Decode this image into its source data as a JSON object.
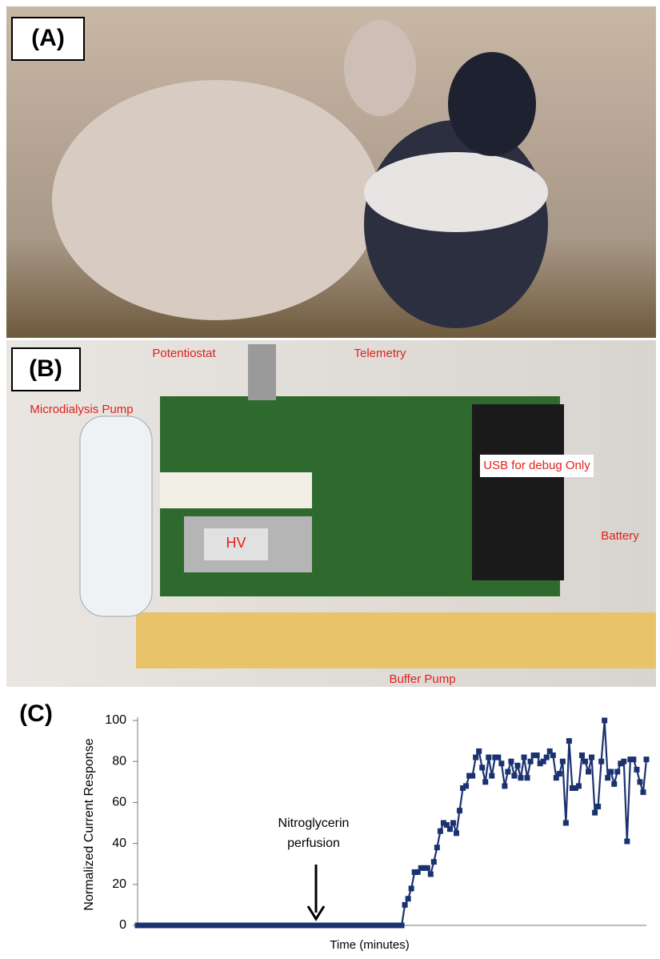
{
  "panels": {
    "a": {
      "label": "(A)"
    },
    "b": {
      "label": "(B)",
      "annotations": [
        "Potentiostat",
        "Telemetry",
        "Microdialysis Pump",
        "USB for debug Only",
        "HV",
        "Battery",
        "Buffer Pump"
      ]
    },
    "c": {
      "label": "(C)"
    }
  },
  "chart_data": {
    "type": "line",
    "ylabel": "Normalized Current Response",
    "xlabel": "Time (minutes)",
    "annotation": [
      "Nitroglycerin",
      "perfusion"
    ],
    "color": "#1b3270",
    "ylim": [
      0,
      100
    ],
    "yticks": [
      0,
      20,
      40,
      60,
      80,
      100
    ],
    "values": [
      0,
      0,
      0,
      0,
      0,
      0,
      0,
      0,
      0,
      0,
      0,
      0,
      0,
      0,
      0,
      0,
      0,
      0,
      0,
      0,
      0,
      0,
      0,
      0,
      0,
      0,
      0,
      0,
      0,
      0,
      0,
      0,
      0,
      0,
      0,
      0,
      0,
      0,
      0,
      0,
      0,
      0,
      0,
      0,
      0,
      0,
      0,
      0,
      0,
      0,
      0,
      0,
      0,
      0,
      0,
      0,
      0,
      0,
      0,
      0,
      0,
      0,
      0,
      0,
      0,
      0,
      0,
      0,
      0,
      0,
      0,
      0,
      0,
      0,
      0,
      0,
      0,
      0,
      0,
      0,
      0,
      0,
      0,
      10,
      13,
      18,
      26,
      26,
      28,
      28,
      28,
      25,
      31,
      38,
      46,
      50,
      49,
      47,
      50,
      45,
      56,
      67,
      68,
      73,
      73,
      82,
      85,
      77,
      70,
      82,
      73,
      82,
      82,
      79,
      68,
      75,
      80,
      73,
      78,
      72,
      82,
      72,
      80,
      83,
      83,
      79,
      80,
      82,
      85,
      83,
      72,
      74,
      80,
      50,
      90,
      67,
      67,
      68,
      83,
      80,
      75,
      82,
      55,
      58,
      80,
      100,
      72,
      75,
      69,
      75,
      79,
      80,
      41,
      81,
      81,
      76,
      70,
      65,
      81
    ]
  }
}
